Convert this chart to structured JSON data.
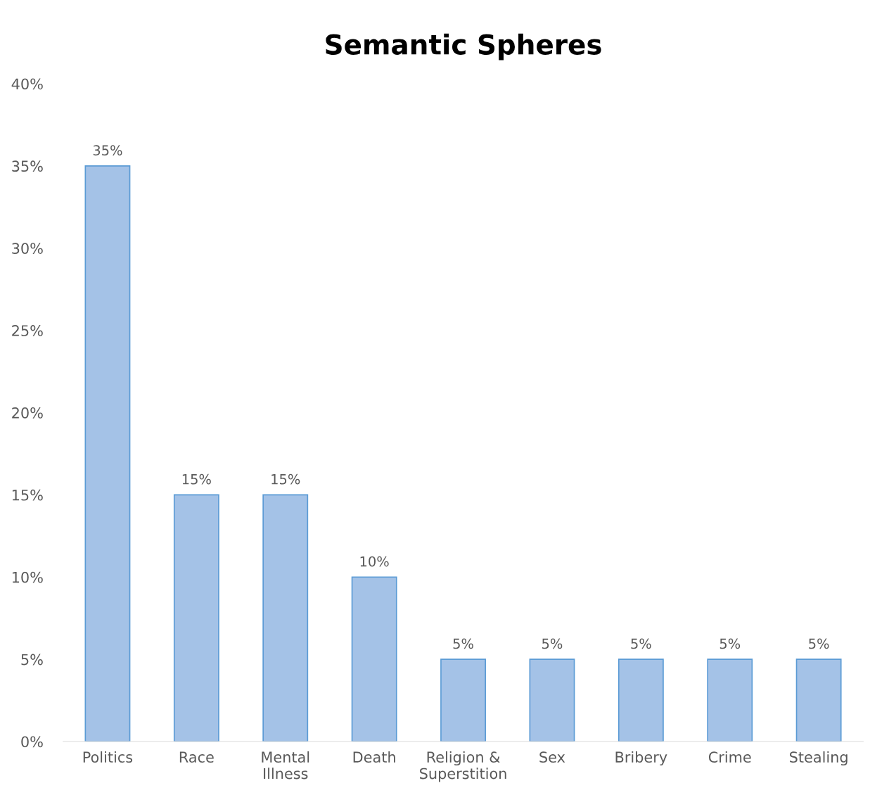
{
  "chart_data": {
    "type": "bar",
    "title": "Semantic Spheres",
    "categories": [
      "Politics",
      "Race",
      "Mental\nIllness",
      "Death",
      "Religion &\nSuperstition",
      "Sex",
      "Bribery",
      "Crime",
      "Stealing"
    ],
    "values": [
      35,
      15,
      15,
      10,
      5,
      5,
      5,
      5,
      5
    ],
    "value_labels": [
      "35%",
      "15%",
      "15%",
      "10%",
      "5%",
      "5%",
      "5%",
      "5%",
      "5%"
    ],
    "color": "#a4c2e7",
    "ylim": [
      0,
      40
    ],
    "yticks": [
      {
        "value": 0,
        "label": "0%"
      },
      {
        "value": 5,
        "label": "5%"
      },
      {
        "value": 10,
        "label": "10%"
      },
      {
        "value": 15,
        "label": "15%"
      },
      {
        "value": 20,
        "label": "20%"
      },
      {
        "value": 25,
        "label": "25%"
      },
      {
        "value": 30,
        "label": "30%"
      },
      {
        "value": 35,
        "label": "35%"
      },
      {
        "value": 40,
        "label": "40%"
      }
    ],
    "grid": false,
    "legend": false
  }
}
